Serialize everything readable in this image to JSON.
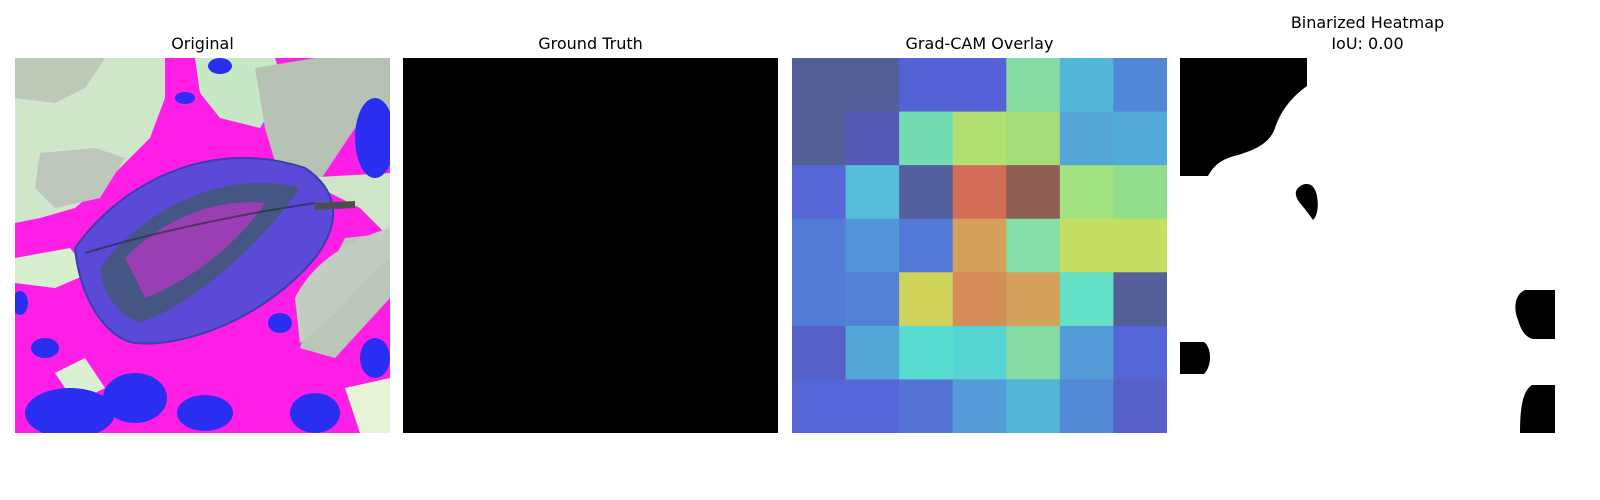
{
  "panels": {
    "original": {
      "title": "Original"
    },
    "ground_truth": {
      "title": "Ground Truth"
    },
    "overlay": {
      "title": "Grad-CAM Overlay"
    },
    "binarized": {
      "title_line1": "Binarized Heatmap",
      "title_line2": "IoU: 0.00"
    }
  },
  "chart_data": {
    "type": "heatmap",
    "title": "Grad-CAM Overlay",
    "grid_shape": [
      7,
      7
    ],
    "cell_colors": [
      [
        "#535f96",
        "#535f96",
        "#5561d6",
        "#5561d6",
        "#84dca3",
        "#53b5d8",
        "#5387d8"
      ],
      [
        "#535f96",
        "#5559b8",
        "#73dcb2",
        "#b3e073",
        "#a3de7b",
        "#54a6d8",
        "#52aad8"
      ],
      [
        "#5566d6",
        "#55bdd9",
        "#525f9c",
        "#d46d57",
        "#8e5d54",
        "#a3e280",
        "#90dd8e"
      ],
      [
        "#537cd6",
        "#5396d8",
        "#5378d6",
        "#d4a05c",
        "#84dfaa",
        "#c5df63",
        "#c5df63"
      ],
      [
        "#537cd6",
        "#5381d6",
        "#d1d45b",
        "#d48d57",
        "#d4a05c",
        "#64e1c6",
        "#535f96"
      ],
      [
        "#5560c8",
        "#53a8d8",
        "#58dcd1",
        "#56d4d4",
        "#84dca3",
        "#549cd8",
        "#5566d6"
      ],
      [
        "#5566d8",
        "#5566d8",
        "#5573d6",
        "#549cd8",
        "#53b5d8",
        "#5489d8",
        "#5560c8"
      ]
    ],
    "ground_truth_color": "#000000",
    "iou": 0.0,
    "palette": {
      "magenta": "#ff1ee6",
      "blue": "#2a2ef0",
      "mint": "#d2f0cc",
      "gray_green": "#b8c9b6",
      "leaf_dark": "#3c4f3f",
      "black": "#000000",
      "white": "#ffffff"
    }
  }
}
